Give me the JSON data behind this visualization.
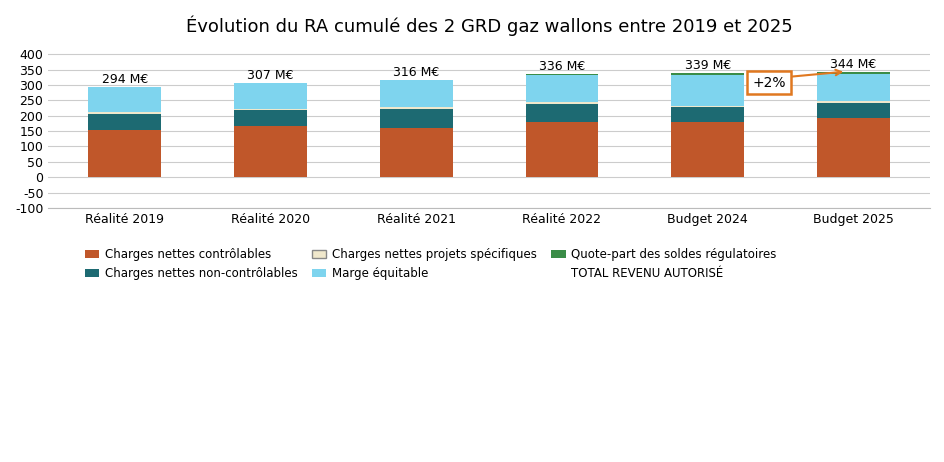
{
  "title": "Évolution du RA cumulé des 2 GRD gaz wallons entre 2019 et 2025",
  "categories": [
    "Réalité 2019",
    "Réalité 2020",
    "Réalité 2021",
    "Réalité 2022",
    "Budget 2024",
    "Budget 2025"
  ],
  "totals": [
    "294 M€",
    "307 M€",
    "316 M€",
    "336 M€",
    "339 M€",
    "344 M€"
  ],
  "segments": {
    "Charges nettes contrôlables": {
      "values": [
        152,
        168,
        161,
        179,
        181,
        193
      ],
      "color": "#C0572A"
    },
    "Charges nettes non-contrôlables": {
      "values": [
        55,
        50,
        62,
        60,
        48,
        50
      ],
      "color": "#1D6A72"
    },
    "Charges nettes projets spécifiques": {
      "values": [
        5,
        5,
        5,
        5,
        4,
        4
      ],
      "color": "#F0E8CC"
    },
    "Marge équitable": {
      "values": [
        80,
        82,
        87,
        90,
        98,
        89
      ],
      "color": "#7ED4EE"
    },
    "Quote-part des soldes régulatoires": {
      "values": [
        2,
        2,
        1,
        2,
        8,
        8
      ],
      "color": "#3A8C47"
    }
  },
  "ylim": [
    -100,
    420
  ],
  "yticks": [
    -100,
    -50,
    0,
    50,
    100,
    150,
    200,
    250,
    300,
    350,
    400
  ],
  "annotation_text": "+2%",
  "annotation_color": "#E07820",
  "background_color": "#FFFFFF",
  "legend_items": [
    {
      "label": "Charges nettes contrôlables",
      "color": "#C0572A"
    },
    {
      "label": "Charges nettes non-contrôlables",
      "color": "#1D6A72"
    },
    {
      "label": "Charges nettes projets spécifiques",
      "color": "#F0E8CC"
    },
    {
      "label": "Marge équitable",
      "color": "#7ED4EE"
    },
    {
      "label": "Quote-part des soldes régulatoires",
      "color": "#3A8C47"
    },
    {
      "label": "TOTAL REVENU AUTORISÉ",
      "color": null
    }
  ],
  "bar_width": 0.5,
  "title_fontsize": 13
}
